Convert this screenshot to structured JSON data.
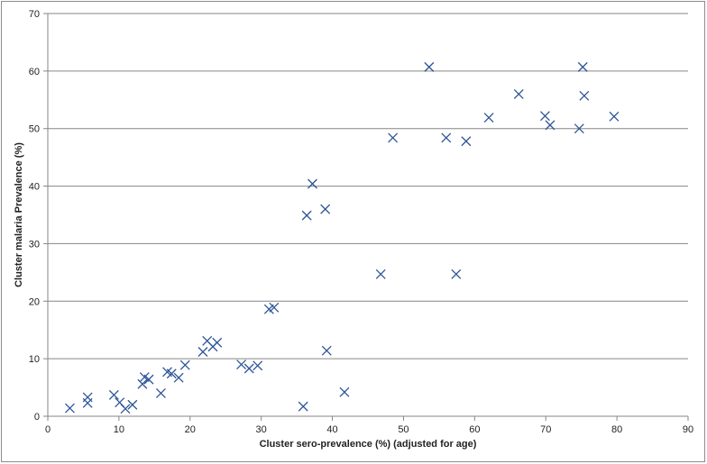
{
  "chart_data": {
    "type": "scatter",
    "title": "",
    "xlabel": "Cluster sero-prevalence (%) (adjusted for age)",
    "ylabel": "Cluster malaria Prevalence (%)",
    "xlim": [
      0,
      90
    ],
    "ylim": [
      0,
      70
    ],
    "x_ticks": [
      0,
      10,
      20,
      30,
      40,
      50,
      60,
      70,
      80,
      90
    ],
    "y_ticks": [
      0,
      10,
      20,
      30,
      40,
      50,
      60,
      70
    ],
    "grid": "horizontal",
    "legend": "none",
    "marker": "x",
    "marker_color": "#2e5597",
    "points": [
      {
        "x": 3.1,
        "y": 1.4
      },
      {
        "x": 5.6,
        "y": 3.3
      },
      {
        "x": 5.6,
        "y": 2.3
      },
      {
        "x": 9.3,
        "y": 3.7
      },
      {
        "x": 10.1,
        "y": 2.4
      },
      {
        "x": 10.9,
        "y": 1.3
      },
      {
        "x": 11.9,
        "y": 2.0
      },
      {
        "x": 13.3,
        "y": 5.6
      },
      {
        "x": 13.6,
        "y": 6.8
      },
      {
        "x": 14.2,
        "y": 6.4
      },
      {
        "x": 15.9,
        "y": 4.0
      },
      {
        "x": 16.8,
        "y": 7.7
      },
      {
        "x": 17.4,
        "y": 7.4
      },
      {
        "x": 18.4,
        "y": 6.7
      },
      {
        "x": 19.3,
        "y": 8.9
      },
      {
        "x": 21.8,
        "y": 11.2
      },
      {
        "x": 22.4,
        "y": 13.1
      },
      {
        "x": 23.2,
        "y": 12.1
      },
      {
        "x": 23.8,
        "y": 12.8
      },
      {
        "x": 27.2,
        "y": 9.0
      },
      {
        "x": 28.3,
        "y": 8.3
      },
      {
        "x": 29.5,
        "y": 8.8
      },
      {
        "x": 31.1,
        "y": 18.6
      },
      {
        "x": 31.8,
        "y": 18.9
      },
      {
        "x": 35.9,
        "y": 1.7
      },
      {
        "x": 36.4,
        "y": 34.9
      },
      {
        "x": 37.2,
        "y": 40.4
      },
      {
        "x": 39.0,
        "y": 36.0
      },
      {
        "x": 39.2,
        "y": 11.4
      },
      {
        "x": 41.7,
        "y": 4.2
      },
      {
        "x": 46.8,
        "y": 24.7
      },
      {
        "x": 48.5,
        "y": 48.4
      },
      {
        "x": 53.6,
        "y": 60.7
      },
      {
        "x": 56.0,
        "y": 48.4
      },
      {
        "x": 57.4,
        "y": 24.7
      },
      {
        "x": 58.8,
        "y": 47.8
      },
      {
        "x": 62.0,
        "y": 51.9
      },
      {
        "x": 66.2,
        "y": 56.0
      },
      {
        "x": 69.9,
        "y": 52.2
      },
      {
        "x": 70.6,
        "y": 50.6
      },
      {
        "x": 74.7,
        "y": 50.0
      },
      {
        "x": 75.2,
        "y": 60.7
      },
      {
        "x": 75.4,
        "y": 55.7
      },
      {
        "x": 79.6,
        "y": 52.1
      }
    ]
  }
}
